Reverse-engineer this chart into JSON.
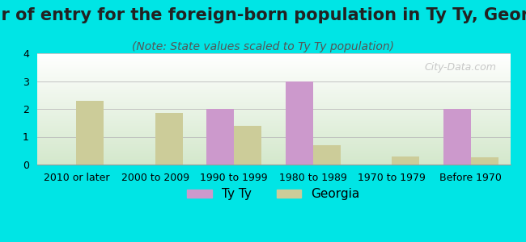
{
  "title": "Year of entry for the foreign-born population in Ty Ty, Georgia",
  "subtitle": "(Note: State values scaled to Ty Ty population)",
  "categories": [
    "2010 or later",
    "2000 to 2009",
    "1990 to 1999",
    "1980 to 1989",
    "1970 to 1979",
    "Before 1970"
  ],
  "ty_ty": [
    0,
    0,
    2.0,
    3.0,
    0,
    2.0
  ],
  "georgia": [
    2.3,
    1.85,
    1.4,
    0.7,
    0.3,
    0.25
  ],
  "ty_ty_color": "#cc99cc",
  "georgia_color": "#cccc99",
  "background_color": "#00e5e5",
  "ylim": [
    0,
    4
  ],
  "yticks": [
    0,
    1,
    2,
    3,
    4
  ],
  "bar_width": 0.35,
  "title_fontsize": 15,
  "subtitle_fontsize": 10,
  "tick_fontsize": 9,
  "legend_fontsize": 11,
  "watermark": "City-Data.com"
}
